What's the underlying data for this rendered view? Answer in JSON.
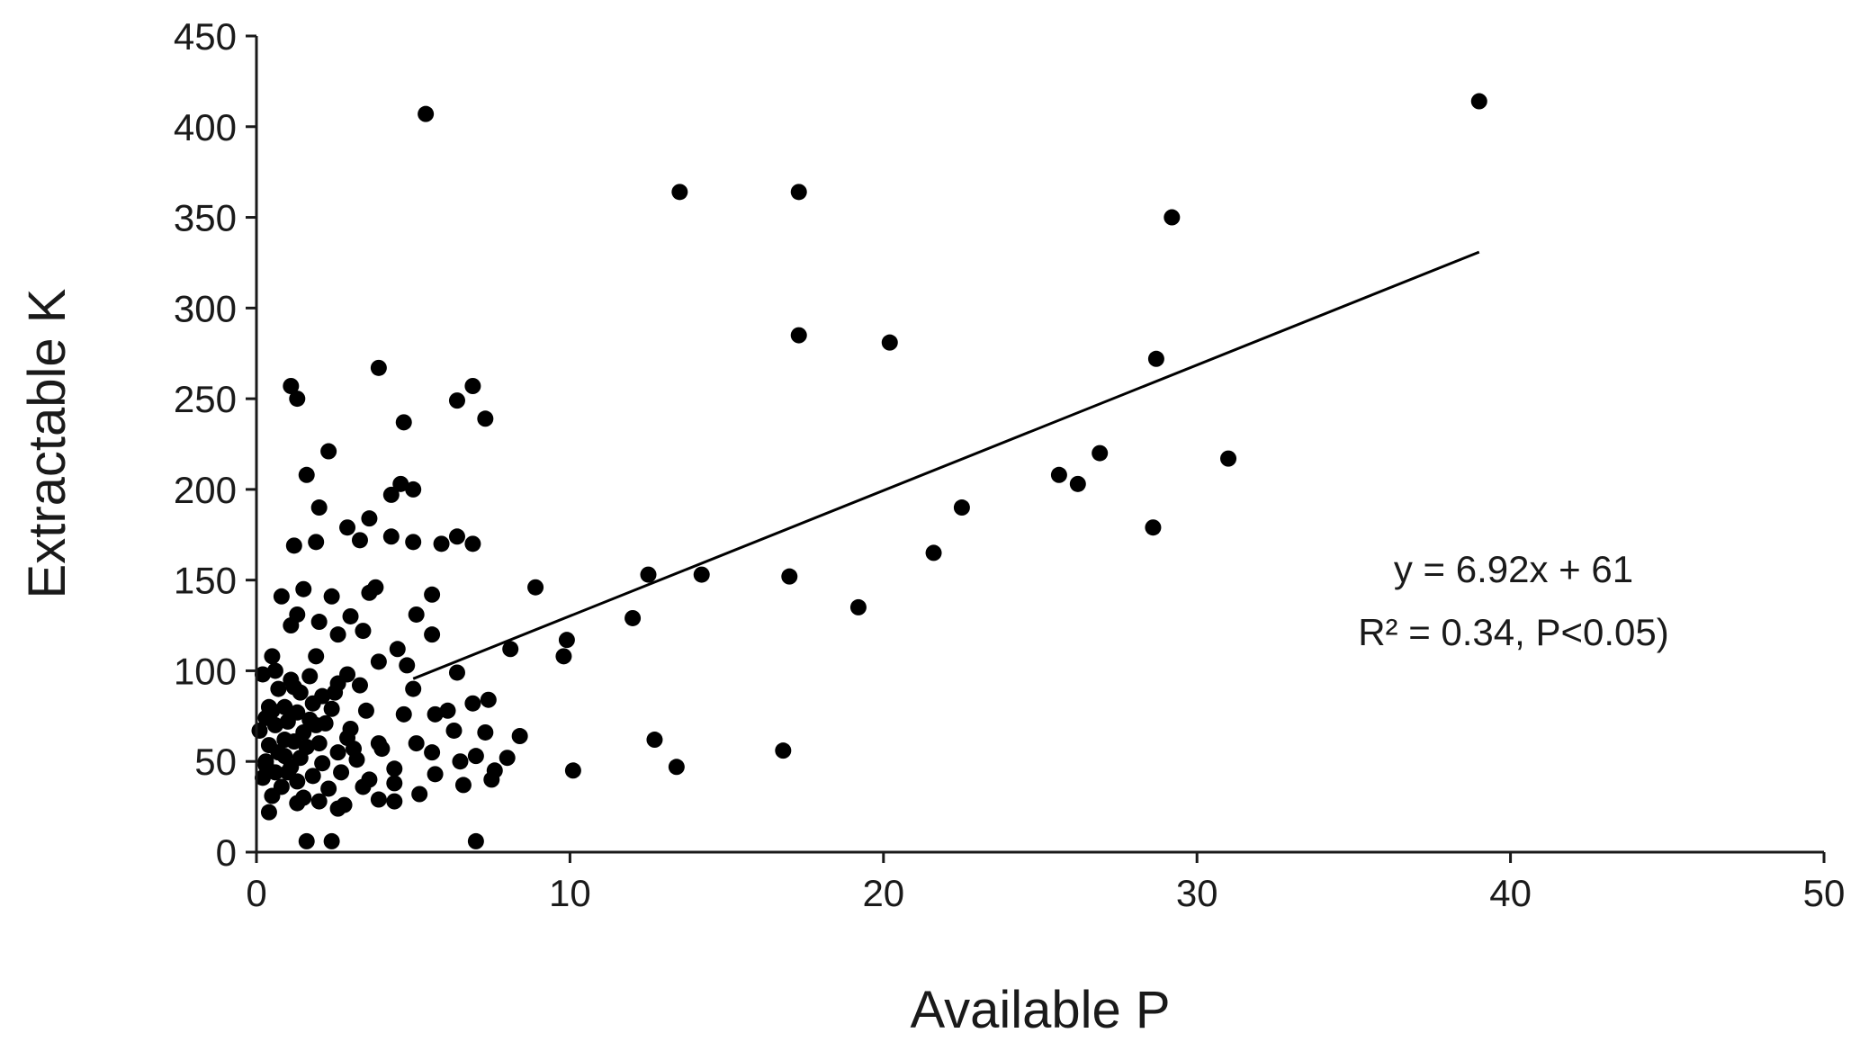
{
  "chart_data": {
    "type": "scatter",
    "title": "",
    "xlabel": "Available P",
    "ylabel": "Extractable K",
    "xlim": [
      0,
      50
    ],
    "ylim": [
      0,
      450
    ],
    "xticks": [
      0,
      10,
      20,
      30,
      40,
      50
    ],
    "yticks": [
      0,
      50,
      100,
      150,
      200,
      250,
      300,
      350,
      400,
      450
    ],
    "grid": false,
    "legend": "none",
    "point_color": "#000000",
    "trendline": {
      "slope": 6.92,
      "intercept": 61,
      "x_range": [
        5,
        39
      ]
    },
    "annotations": [
      "y = 6.92x + 61",
      "R² = 0.34, P<0.05)"
    ],
    "series": [
      {
        "points": [
          [
            5.4,
            407
          ],
          [
            39,
            414
          ],
          [
            13.5,
            364
          ],
          [
            17.3,
            364
          ],
          [
            29.2,
            350
          ],
          [
            17.3,
            285
          ],
          [
            20.2,
            281
          ],
          [
            28.7,
            272
          ],
          [
            3.9,
            267
          ],
          [
            1.1,
            257
          ],
          [
            6.9,
            257
          ],
          [
            1.3,
            250
          ],
          [
            6.4,
            249
          ],
          [
            7.3,
            239
          ],
          [
            4.7,
            237
          ],
          [
            2.3,
            221
          ],
          [
            26.9,
            220
          ],
          [
            31.0,
            217
          ],
          [
            1.6,
            208
          ],
          [
            25.6,
            208
          ],
          [
            26.2,
            203
          ],
          [
            4.6,
            203
          ],
          [
            5.0,
            200
          ],
          [
            4.3,
            197
          ],
          [
            2.0,
            190
          ],
          [
            22.5,
            190
          ],
          [
            3.6,
            184
          ],
          [
            2.9,
            179
          ],
          [
            28.6,
            179
          ],
          [
            6.4,
            174
          ],
          [
            4.3,
            174
          ],
          [
            3.3,
            172
          ],
          [
            1.9,
            171
          ],
          [
            5.9,
            170
          ],
          [
            6.9,
            170
          ],
          [
            1.2,
            169
          ],
          [
            5.0,
            171
          ],
          [
            21.6,
            165
          ],
          [
            12.5,
            153
          ],
          [
            14.2,
            153
          ],
          [
            17.0,
            152
          ],
          [
            3.8,
            146
          ],
          [
            1.5,
            145
          ],
          [
            3.6,
            143
          ],
          [
            8.9,
            146
          ],
          [
            5.6,
            142
          ],
          [
            0.8,
            141
          ],
          [
            2.4,
            141
          ],
          [
            19.2,
            135
          ],
          [
            3.0,
            130
          ],
          [
            12.0,
            129
          ],
          [
            5.1,
            131
          ],
          [
            1.3,
            131
          ],
          [
            2.0,
            127
          ],
          [
            1.1,
            125
          ],
          [
            3.4,
            122
          ],
          [
            5.6,
            120
          ],
          [
            2.6,
            120
          ],
          [
            9.9,
            117
          ],
          [
            8.1,
            112
          ],
          [
            4.5,
            112
          ],
          [
            1.9,
            108
          ],
          [
            9.8,
            108
          ],
          [
            0.5,
            108
          ],
          [
            3.9,
            105
          ],
          [
            4.8,
            103
          ],
          [
            0.6,
            100
          ],
          [
            6.4,
            99
          ],
          [
            0.2,
            98
          ],
          [
            2.9,
            98
          ],
          [
            1.7,
            97
          ],
          [
            1.1,
            95
          ],
          [
            2.6,
            93
          ],
          [
            3.3,
            92
          ],
          [
            0.7,
            90
          ],
          [
            5.0,
            90
          ],
          [
            1.4,
            88
          ],
          [
            2.1,
            86
          ],
          [
            7.4,
            84
          ],
          [
            6.9,
            82
          ],
          [
            1.8,
            82
          ],
          [
            0.4,
            80
          ],
          [
            0.9,
            80
          ],
          [
            2.4,
            79
          ],
          [
            3.5,
            78
          ],
          [
            6.1,
            78
          ],
          [
            1.3,
            77
          ],
          [
            4.7,
            76
          ],
          [
            5.7,
            76
          ],
          [
            0.3,
            74
          ],
          [
            1.0,
            72
          ],
          [
            2.2,
            71
          ],
          [
            0.6,
            70
          ],
          [
            1.9,
            70
          ],
          [
            6.3,
            67
          ],
          [
            3.0,
            68
          ],
          [
            7.3,
            66
          ],
          [
            0.1,
            67
          ],
          [
            1.5,
            66
          ],
          [
            8.4,
            64
          ],
          [
            12.7,
            62
          ],
          [
            1.2,
            61
          ],
          [
            2.0,
            60
          ],
          [
            3.9,
            60
          ],
          [
            5.1,
            60
          ],
          [
            0.4,
            59
          ],
          [
            1.6,
            58
          ],
          [
            16.8,
            56
          ],
          [
            4.0,
            57
          ],
          [
            2.6,
            55
          ],
          [
            5.6,
            55
          ],
          [
            0.9,
            53
          ],
          [
            7.0,
            53
          ],
          [
            8.0,
            52
          ],
          [
            1.4,
            52
          ],
          [
            3.2,
            51
          ],
          [
            0.3,
            50
          ],
          [
            6.5,
            50
          ],
          [
            2.1,
            49
          ],
          [
            13.4,
            47
          ],
          [
            1.1,
            47
          ],
          [
            4.4,
            46
          ],
          [
            7.6,
            45
          ],
          [
            10.1,
            45
          ],
          [
            0.6,
            44
          ],
          [
            2.7,
            44
          ],
          [
            5.7,
            43
          ],
          [
            1.8,
            42
          ],
          [
            0.2,
            41
          ],
          [
            3.6,
            40
          ],
          [
            7.5,
            40
          ],
          [
            1.3,
            39
          ],
          [
            4.4,
            38
          ],
          [
            6.6,
            37
          ],
          [
            0.8,
            36
          ],
          [
            2.3,
            35
          ],
          [
            5.2,
            32
          ],
          [
            0.5,
            31
          ],
          [
            1.5,
            30
          ],
          [
            3.9,
            29
          ],
          [
            2.0,
            28
          ],
          [
            4.4,
            28
          ],
          [
            1.3,
            27
          ],
          [
            2.8,
            26
          ],
          [
            0.4,
            22
          ],
          [
            2.6,
            24
          ],
          [
            1.6,
            6
          ],
          [
            2.4,
            6
          ],
          [
            7.0,
            6
          ],
          [
            0.3,
            48
          ],
          [
            0.9,
            62
          ],
          [
            1.7,
            73
          ],
          [
            2.5,
            88
          ],
          [
            3.1,
            57
          ],
          [
            1.2,
            91
          ],
          [
            0.7,
            55
          ],
          [
            2.9,
            63
          ],
          [
            1.0,
            44
          ],
          [
            3.4,
            36
          ],
          [
            0.5,
            78
          ]
        ]
      }
    ]
  }
}
